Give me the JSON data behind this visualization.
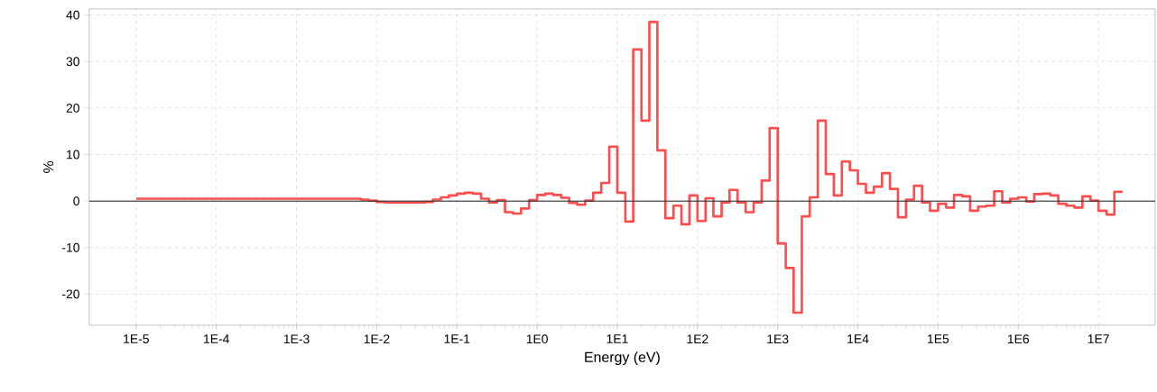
{
  "chart_data": {
    "type": "histogram",
    "xlabel": "Energy (eV)",
    "ylabel": "%",
    "color": "#ff4d4d",
    "log": "x",
    "grid": true,
    "bins": [
      1e-05,
      1.26e-05,
      1.58e-05,
      2e-05,
      2.51e-05,
      3.16e-05,
      3.98e-05,
      5.01e-05,
      6.31e-05,
      7.94e-05,
      0.0001,
      0.000126,
      0.000158,
      0.0002,
      0.000251,
      0.000316,
      0.000398,
      0.000501,
      0.000631,
      0.000794,
      0.001,
      0.00126,
      0.00158,
      0.002,
      0.00251,
      0.00316,
      0.00398,
      0.00501,
      0.00631,
      0.00794,
      0.01,
      0.0126,
      0.0158,
      0.02,
      0.0251,
      0.0316,
      0.0398,
      0.0501,
      0.0631,
      0.0794,
      0.1,
      0.126,
      0.158,
      0.2,
      0.251,
      0.316,
      0.398,
      0.501,
      0.631,
      0.794,
      1,
      1.26,
      1.58,
      2,
      2.51,
      3.16,
      3.98,
      5.01,
      6.31,
      7.94,
      10,
      12.6,
      15.8,
      20,
      25.1,
      31.6,
      39.8,
      50.1,
      63.1,
      79.4,
      100,
      126,
      158,
      200,
      251,
      316,
      398,
      501,
      631,
      794,
      1000,
      1260,
      1580,
      2000,
      2510,
      3160,
      3980,
      5010,
      6310,
      7940,
      10000.0,
      12600.0,
      15800.0,
      20000.0,
      25100.0,
      31600.0,
      39800.0,
      50100.0,
      63100.0,
      79400.0,
      100000.0,
      126000.0,
      158000.0,
      200000.0,
      251000.0,
      316000.0,
      398000.0,
      501000.0,
      631000.0,
      794000.0,
      1000000.0,
      1260000.0,
      1580000.0,
      2000000.0,
      2510000.0,
      3160000.0,
      3980000.0,
      5010000.0,
      6310000.0,
      7940000.0,
      10000000.0,
      12600000.0,
      15800000.0,
      20000000.0
    ],
    "values": [
      0.5,
      0.5,
      0.5,
      0.5,
      0.5,
      0.5,
      0.5,
      0.5,
      0.5,
      0.5,
      0.5,
      0.5,
      0.5,
      0.5,
      0.5,
      0.5,
      0.5,
      0.5,
      0.5,
      0.5,
      0.5,
      0.5,
      0.5,
      0.5,
      0.5,
      0.5,
      0.5,
      0.5,
      0.3,
      0.1,
      -0.2,
      -0.3,
      -0.3,
      -0.3,
      -0.3,
      -0.3,
      -0.2,
      0.3,
      0.8,
      1.2,
      1.6,
      1.8,
      1.6,
      0.5,
      -0.3,
      0.2,
      -2.4,
      -2.7,
      -1.6,
      0.2,
      1.3,
      1.6,
      1.3,
      0.7,
      -0.4,
      -0.8,
      0.1,
      1.8,
      3.9,
      11.7,
      1.8,
      -4.4,
      32.6,
      17.3,
      38.5,
      10.9,
      -3.7,
      -1.0,
      -5.0,
      1.2,
      -4.3,
      0.6,
      -3.3,
      -0.3,
      2.4,
      -0.3,
      -2.4,
      -0.3,
      4.4,
      15.7,
      -9.1,
      -14.4,
      -24.0,
      -3.3,
      0.8,
      17.3,
      5.8,
      1.2,
      8.5,
      6.6,
      3.7,
      1.8,
      3.1,
      6.0,
      2.6,
      -3.5,
      0.3,
      3.3,
      -0.3,
      -2.1,
      -0.6,
      -1.4,
      1.3,
      1.0,
      -2.1,
      -1.2,
      -1.0,
      2.1,
      -0.3,
      0.5,
      0.8,
      -0.1,
      1.5,
      1.6,
      1.2,
      -0.6,
      -1.0,
      -1.4,
      1.0,
      0.1,
      -2.1,
      -2.9,
      2.0
    ],
    "xlim": [
      2.6e-06,
      51000000.0
    ],
    "ylim": [
      -26.7,
      41.3
    ],
    "xticks": [
      {
        "value": 1e-05,
        "label": "1E-5"
      },
      {
        "value": 0.0001,
        "label": "1E-4"
      },
      {
        "value": 0.001,
        "label": "1E-3"
      },
      {
        "value": 0.01,
        "label": "1E-2"
      },
      {
        "value": 0.1,
        "label": "1E-1"
      },
      {
        "value": 1,
        "label": "1E0"
      },
      {
        "value": 10,
        "label": "1E1"
      },
      {
        "value": 100,
        "label": "1E2"
      },
      {
        "value": 1000,
        "label": "1E3"
      },
      {
        "value": 10000.0,
        "label": "1E4"
      },
      {
        "value": 100000.0,
        "label": "1E5"
      },
      {
        "value": 1000000.0,
        "label": "1E6"
      },
      {
        "value": 10000000.0,
        "label": "1E7"
      }
    ],
    "yticks": [
      -20,
      -10,
      0,
      10,
      20,
      30,
      40
    ],
    "ref_lines": [
      {
        "axis": "y",
        "value": 0,
        "color": "#333333"
      }
    ]
  }
}
